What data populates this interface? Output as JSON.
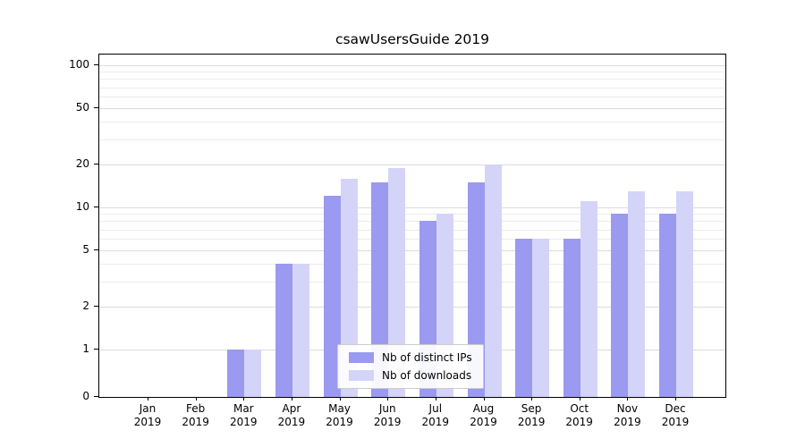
{
  "chart_data": {
    "type": "bar",
    "title": "csawUsersGuide 2019",
    "categories": [
      "Jan 2019",
      "Feb 2019",
      "Mar 2019",
      "Apr 2019",
      "May 2019",
      "Jun 2019",
      "Jul 2019",
      "Aug 2019",
      "Sep 2019",
      "Oct 2019",
      "Nov 2019",
      "Dec 2019"
    ],
    "series": [
      {
        "name": "Nb of distinct IPs",
        "color": "#9a9af0",
        "values": [
          0,
          0,
          1,
          4,
          12,
          15,
          8,
          15,
          6,
          6,
          9,
          9
        ]
      },
      {
        "name": "Nb of downloads",
        "color": "#d4d4f9",
        "values": [
          0,
          0,
          1,
          4,
          16,
          19,
          9,
          20,
          6,
          11,
          13,
          13
        ]
      }
    ],
    "y_axis": {
      "scale": "log-above-1",
      "ticks": [
        0,
        1,
        2,
        5,
        10,
        20,
        50,
        100
      ],
      "tick_labels": [
        "0",
        "1",
        "2",
        "5",
        "10",
        "20",
        "50",
        "100"
      ],
      "minor_gridlines": [
        3,
        4,
        6,
        7,
        8,
        9,
        30,
        40,
        60,
        70,
        80,
        90
      ],
      "ylim": [
        0,
        120
      ]
    },
    "legend": {
      "position": "lower-center",
      "entries": [
        "Nb of distinct IPs",
        "Nb of downloads"
      ]
    },
    "grid": true
  },
  "colors": {
    "background": "#ffffff",
    "spine": "#000000",
    "major_grid": "#dcdcdc",
    "minor_grid": "#ececec",
    "series_1": "#9a9af0",
    "series_2": "#d4d4f9"
  }
}
